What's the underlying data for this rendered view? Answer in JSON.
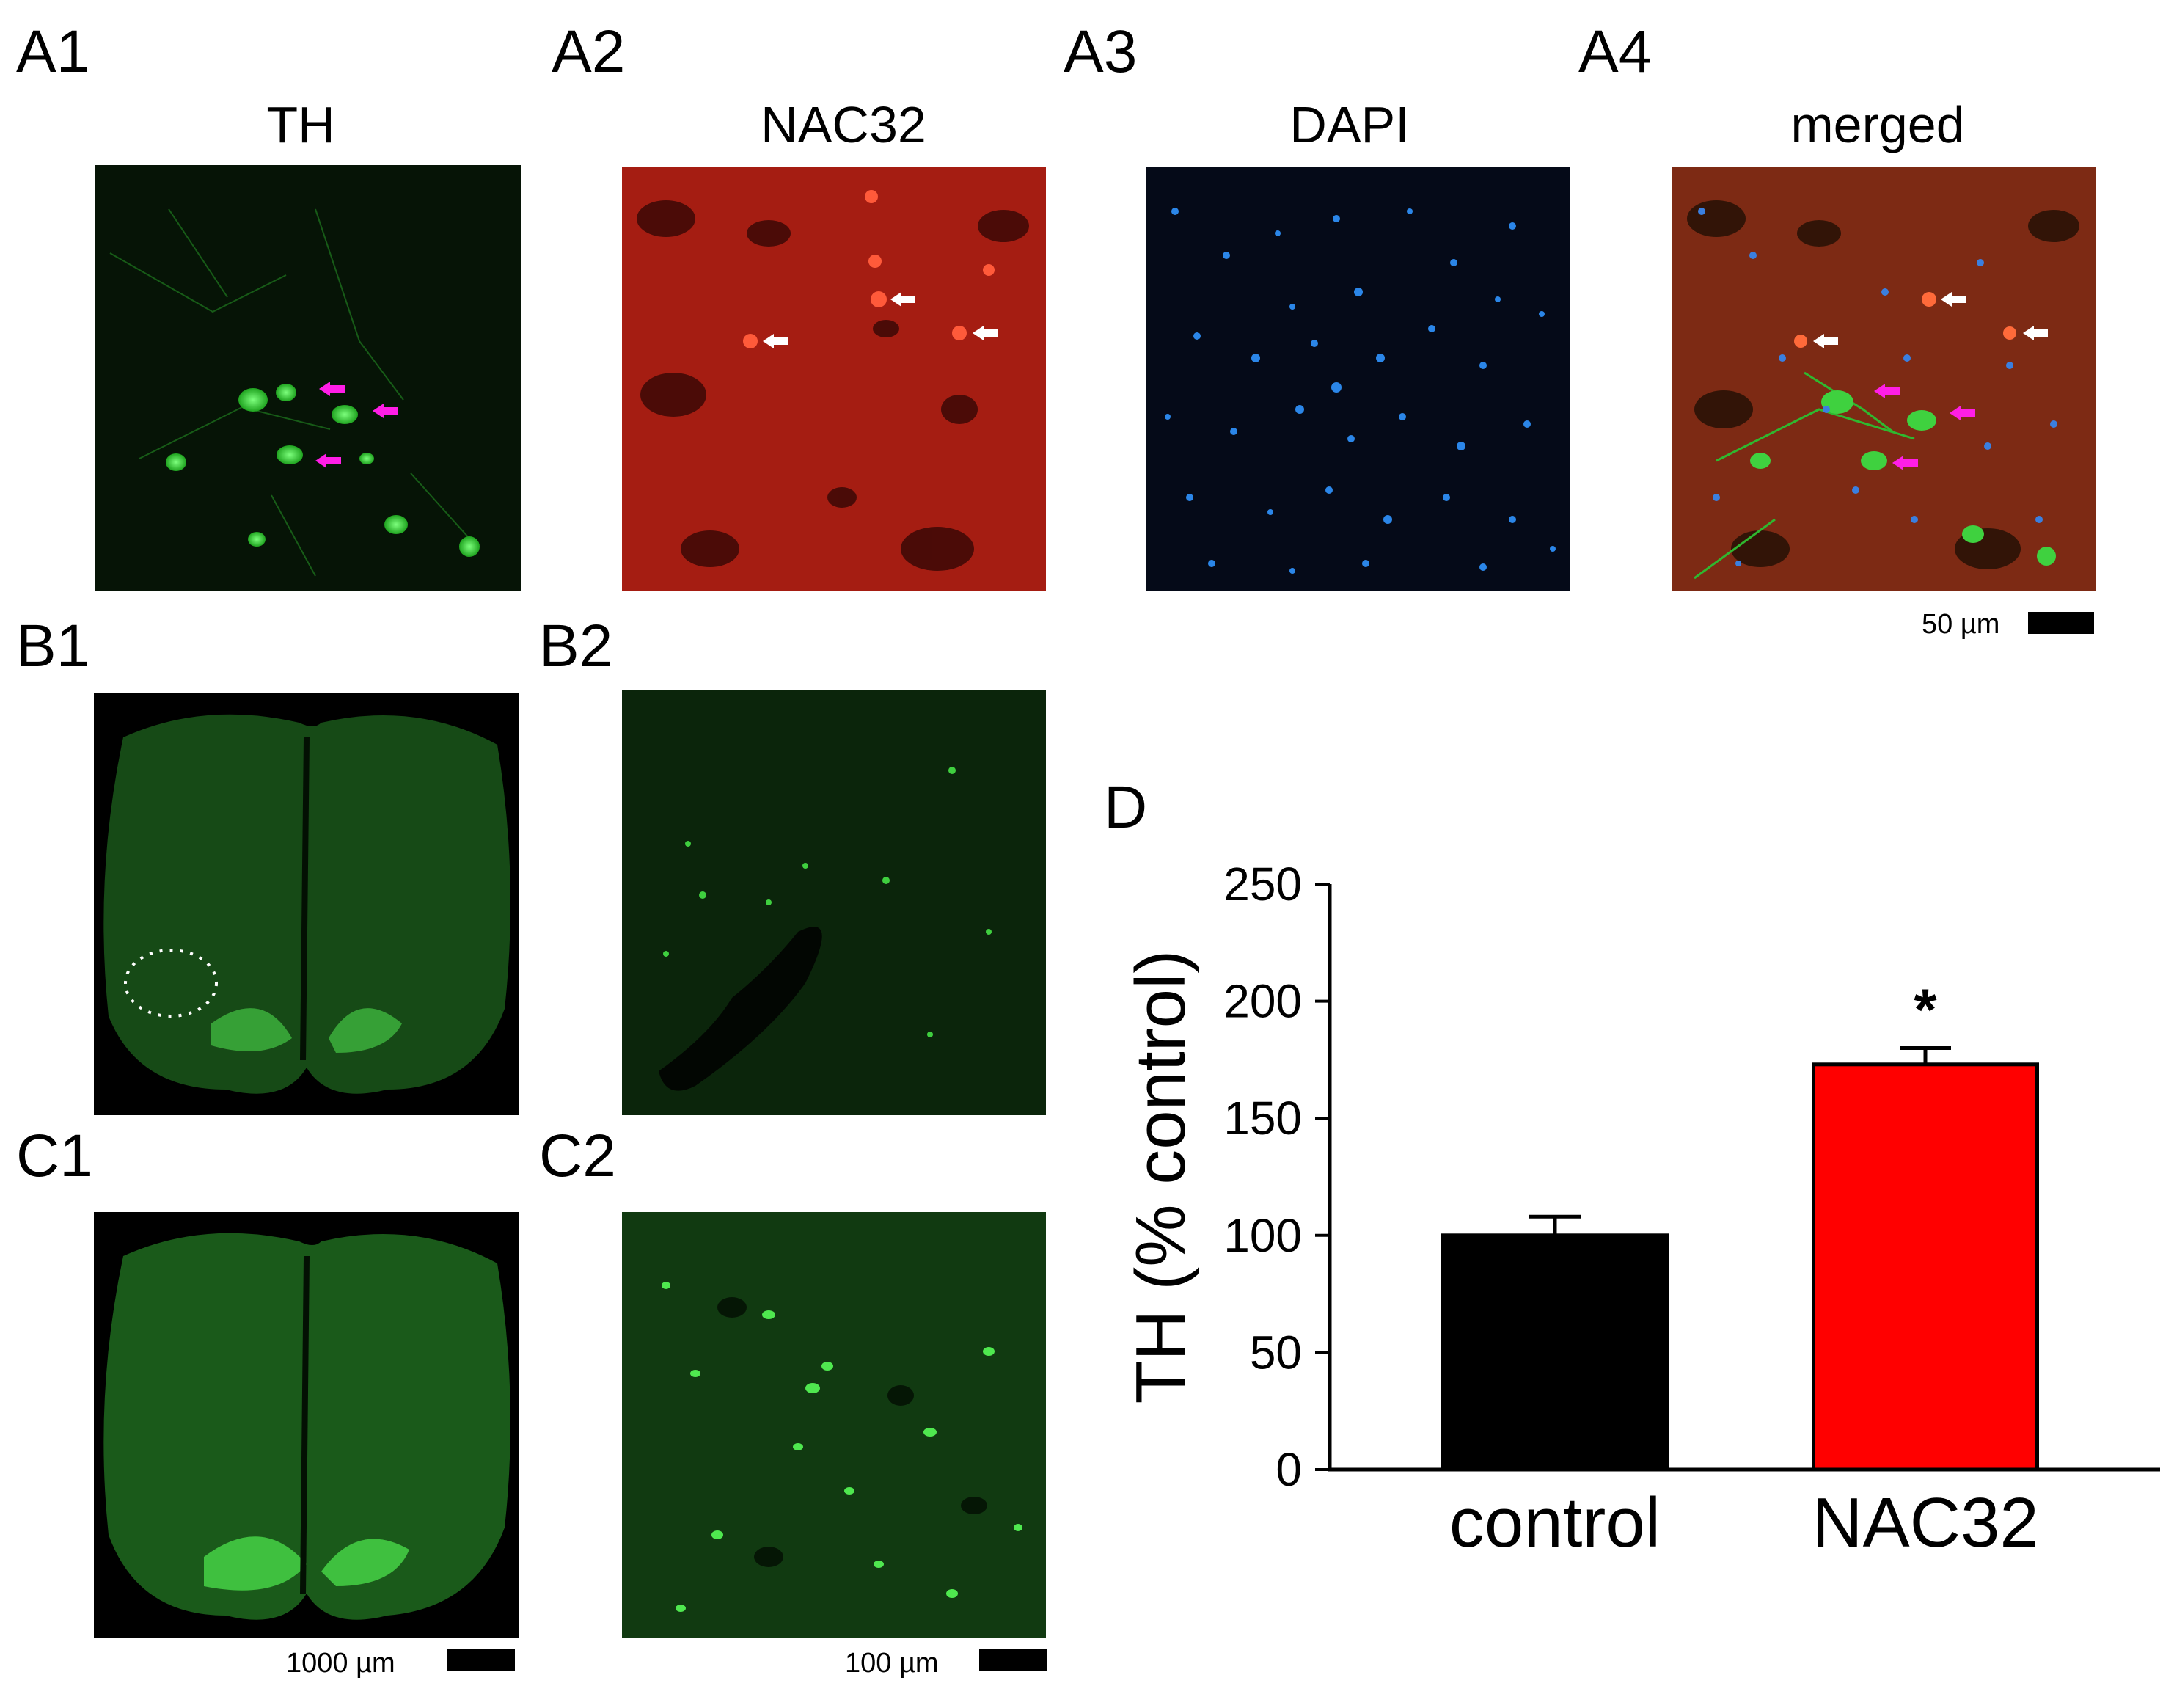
{
  "panel_labels": {
    "a1": "A1",
    "a2": "A2",
    "a3": "A3",
    "a4": "A4",
    "b1": "B1",
    "b2": "B2",
    "c1": "C1",
    "c2": "C2",
    "d": "D"
  },
  "column_titles": {
    "a1": "TH",
    "a2": "NAC32",
    "a3": "DAPI",
    "a4": "merged"
  },
  "scale_bars": {
    "a4": "50 µm",
    "c1": "1000 µm",
    "c2": "100 µm"
  },
  "colors": {
    "th_green": "#2fd12f",
    "nac32_red": "#d41f1f",
    "dapi_blue": "#2b86e8",
    "arrow_magenta": "#ff1ee6",
    "arrow_white": "#ffffff",
    "control_bar": "#000000",
    "nac32_bar": "#ff0000"
  },
  "chart_data": {
    "type": "bar",
    "categories": [
      "control",
      "NAC32"
    ],
    "values": [
      100,
      173
    ],
    "errors": [
      8,
      7
    ],
    "ylabel": "TH (% control)",
    "ylim": [
      0,
      250
    ],
    "yticks": [
      0,
      50,
      100,
      150,
      200,
      250
    ],
    "bar_colors": [
      "#000000",
      "#ff0000"
    ],
    "annotations": [
      {
        "category": "NAC32",
        "text": "*"
      }
    ],
    "grid": false,
    "legend": "none"
  }
}
